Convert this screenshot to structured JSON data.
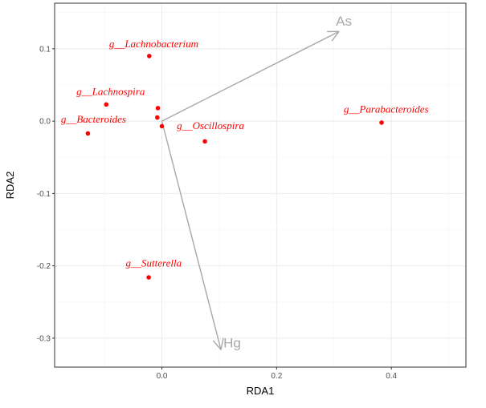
{
  "chart_data": {
    "type": "scatter",
    "title": "",
    "xlabel": "RDA1",
    "ylabel": "RDA2",
    "xlim": [
      -0.187,
      0.53
    ],
    "ylim": [
      -0.34,
      0.163
    ],
    "x_ticks": [
      0.0,
      0.2,
      0.4
    ],
    "x_tick_labels": [
      "0.0",
      "0.2",
      "0.4"
    ],
    "y_ticks": [
      0.1,
      0.0,
      -0.1,
      -0.2,
      -0.3
    ],
    "y_tick_labels": [
      "0.1",
      "0.0",
      "-0.1",
      "-0.2",
      "-0.3"
    ],
    "grid": true,
    "point_color": "#ff0000",
    "arrow_color": "#a8a8a8",
    "grid_color": "#ebebeb",
    "points": [
      {
        "x": -0.022,
        "y": 0.09,
        "label": "g__Lachnobacterium",
        "lx": -0.092,
        "ly": 0.102
      },
      {
        "x": -0.097,
        "y": 0.023,
        "label": "g__Lachnospira",
        "lx": -0.149,
        "ly": 0.036
      },
      {
        "x": -0.129,
        "y": -0.017,
        "label": "g__Bacteroides",
        "lx": -0.176,
        "ly": -0.002
      },
      {
        "x": -0.007,
        "y": 0.018,
        "label": "",
        "lx": null,
        "ly": null
      },
      {
        "x": -0.008,
        "y": 0.005,
        "label": "",
        "lx": null,
        "ly": null
      },
      {
        "x": 0.0,
        "y": -0.007,
        "label": "",
        "lx": null,
        "ly": null
      },
      {
        "x": 0.075,
        "y": -0.028,
        "label": "g__Oscillospira",
        "lx": 0.026,
        "ly": -0.011
      },
      {
        "x": 0.383,
        "y": -0.002,
        "label": "g__Parabacteroides",
        "lx": 0.317,
        "ly": 0.012
      },
      {
        "x": -0.023,
        "y": -0.216,
        "label": "g__Sutterella",
        "lx": -0.063,
        "ly": -0.201
      }
    ],
    "arrows": [
      {
        "name": "As",
        "x": 0.309,
        "y": 0.124
      },
      {
        "name": "Hg",
        "x": 0.103,
        "y": -0.316
      }
    ]
  }
}
